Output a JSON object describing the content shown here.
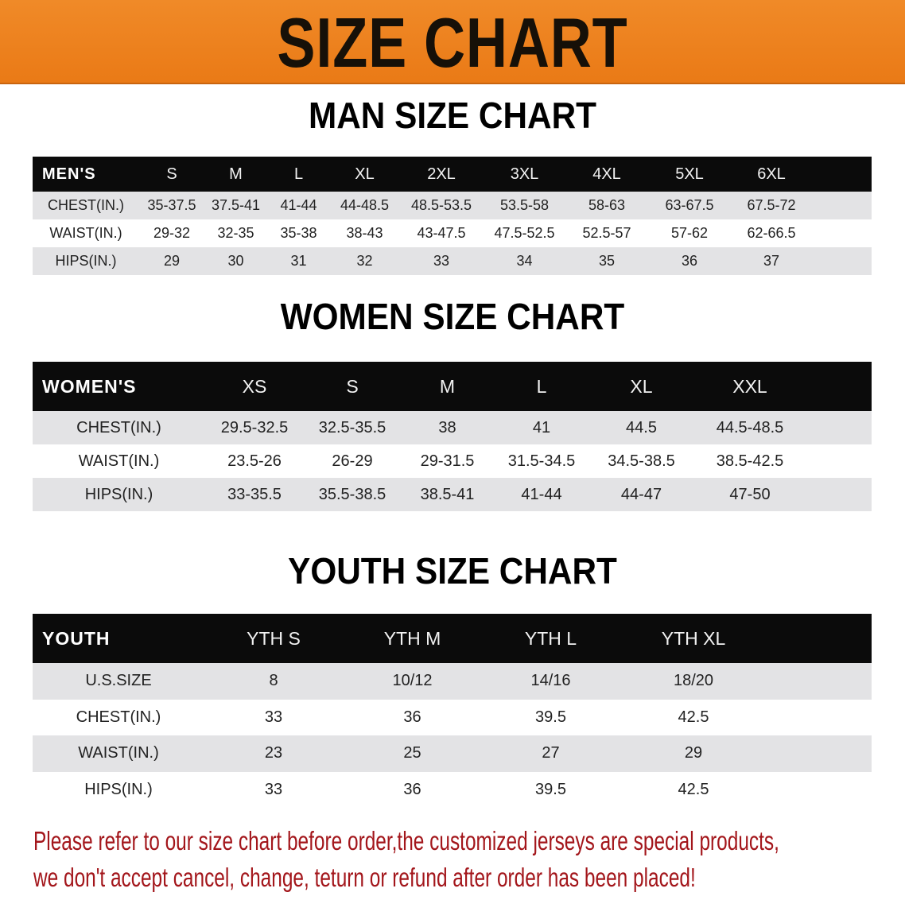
{
  "banner": {
    "title": "SIZE CHART",
    "color": "#ed8020"
  },
  "tables": [
    {
      "title": "MAN SIZE CHART",
      "headers": [
        "MEN'S",
        "S",
        "M",
        "L",
        "XL",
        "2XL",
        "3XL",
        "4XL",
        "5XL",
        "6XL"
      ],
      "rows": [
        [
          "CHEST(IN.)",
          "35-37.5",
          "37.5-41",
          "41-44",
          "44-48.5",
          "48.5-53.5",
          "53.5-58",
          "58-63",
          "63-67.5",
          "67.5-72"
        ],
        [
          "WAIST(IN.)",
          "29-32",
          "32-35",
          "35-38",
          "38-43",
          "43-47.5",
          "47.5-52.5",
          "52.5-57",
          "57-62",
          "62-66.5"
        ],
        [
          "HIPS(IN.)",
          "29",
          "30",
          "31",
          "32",
          "33",
          "34",
          "35",
          "36",
          "37"
        ]
      ]
    },
    {
      "title": "WOMEN SIZE CHART",
      "headers": [
        "WOMEN'S",
        "XS",
        "S",
        "M",
        "L",
        "XL",
        "XXL"
      ],
      "rows": [
        [
          "CHEST(IN.)",
          "29.5-32.5",
          "32.5-35.5",
          "38",
          "41",
          "44.5",
          "44.5-48.5"
        ],
        [
          "WAIST(IN.)",
          "23.5-26",
          "26-29",
          "29-31.5",
          "31.5-34.5",
          "34.5-38.5",
          "38.5-42.5"
        ],
        [
          "HIPS(IN.)",
          "33-35.5",
          "35.5-38.5",
          "38.5-41",
          "41-44",
          "44-47",
          "47-50"
        ]
      ]
    },
    {
      "title": "YOUTH SIZE CHART",
      "headers": [
        "YOUTH",
        "YTH S",
        "YTH M",
        "YTH L",
        "YTH XL"
      ],
      "rows": [
        [
          "U.S.SIZE",
          "8",
          "10/12",
          "14/16",
          "18/20"
        ],
        [
          "CHEST(IN.)",
          "33",
          "36",
          "39.5",
          "42.5"
        ],
        [
          "WAIST(IN.)",
          "23",
          "25",
          "27",
          "29"
        ],
        [
          "HIPS(IN.)",
          "33",
          "36",
          "39.5",
          "42.5"
        ]
      ]
    }
  ],
  "notice": {
    "line1": "Please refer to our size chart before order,the customized jerseys are special products,",
    "line2": "we don't accept cancel, change, teturn or refund after order has been placed!",
    "color": "#a3161b"
  }
}
